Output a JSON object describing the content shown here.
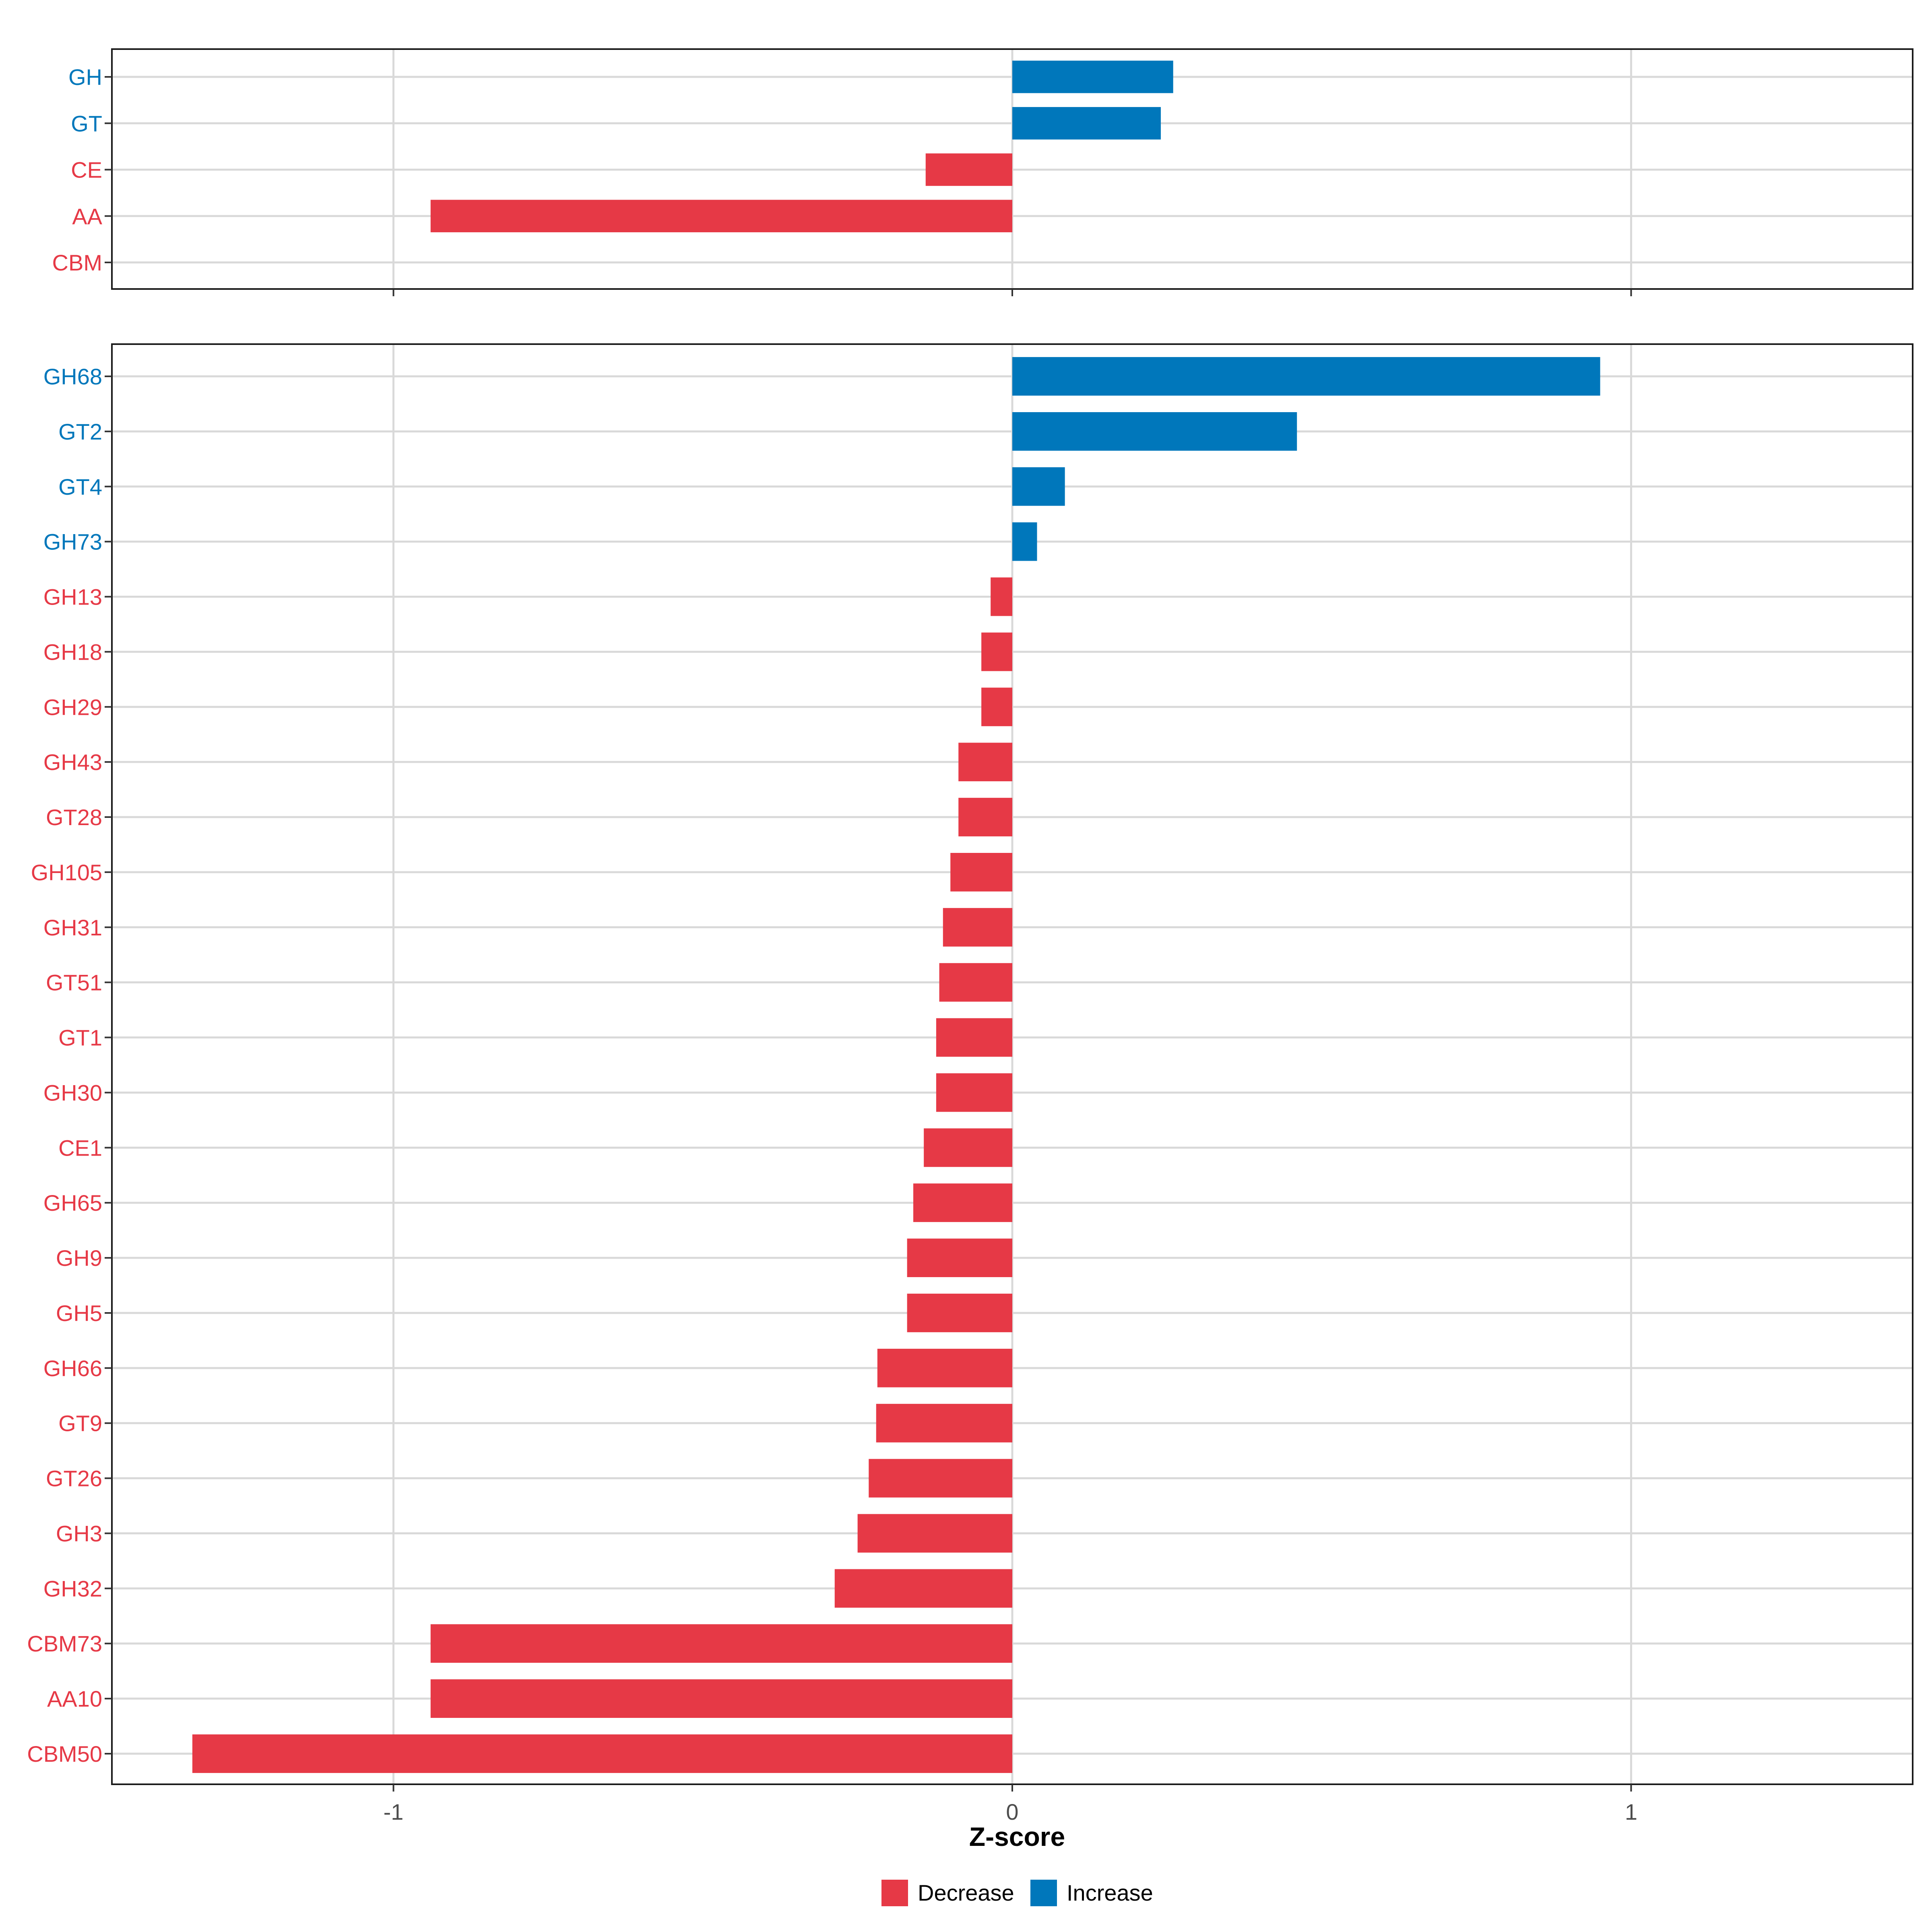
{
  "colors": {
    "decrease": "#e63946",
    "increase": "#0077bb",
    "grid": "#d9d9d9",
    "axis_text": "#4d4d4d"
  },
  "chart_data": [
    {
      "type": "bar",
      "orientation": "horizontal",
      "panel": "top",
      "categories": [
        "GH",
        "GT",
        "CE",
        "AA",
        "CBM"
      ],
      "values": [
        0.26,
        0.24,
        -0.14,
        -0.94,
        0.0
      ],
      "direction": [
        "Increase",
        "Increase",
        "Decrease",
        "Decrease",
        "Decrease"
      ],
      "xlim": [
        -1.455,
        1.455
      ],
      "xticks": [
        -1,
        0,
        1
      ],
      "show_x_tick_labels": false,
      "grid": true
    },
    {
      "type": "bar",
      "orientation": "horizontal",
      "panel": "bottom",
      "categories": [
        "GH68",
        "GT2",
        "GT4",
        "GH73",
        "GH13",
        "GH18",
        "GH29",
        "GH43",
        "GT28",
        "GH105",
        "GH31",
        "GT51",
        "GT1",
        "GH30",
        "CE1",
        "GH65",
        "GH9",
        "GH5",
        "GH66",
        "GT9",
        "GT26",
        "GH3",
        "GH32",
        "CBM73",
        "AA10",
        "CBM50"
      ],
      "values": [
        0.95,
        0.46,
        0.085,
        0.04,
        -0.035,
        -0.05,
        -0.05,
        -0.087,
        -0.087,
        -0.1,
        -0.112,
        -0.118,
        -0.123,
        -0.123,
        -0.143,
        -0.16,
        -0.17,
        -0.17,
        -0.218,
        -0.22,
        -0.232,
        -0.25,
        -0.287,
        -0.94,
        -0.94,
        -1.325
      ],
      "direction": [
        "Increase",
        "Increase",
        "Increase",
        "Increase",
        "Decrease",
        "Decrease",
        "Decrease",
        "Decrease",
        "Decrease",
        "Decrease",
        "Decrease",
        "Decrease",
        "Decrease",
        "Decrease",
        "Decrease",
        "Decrease",
        "Decrease",
        "Decrease",
        "Decrease",
        "Decrease",
        "Decrease",
        "Decrease",
        "Decrease",
        "Decrease",
        "Decrease",
        "Decrease"
      ],
      "xlim": [
        -1.455,
        1.455
      ],
      "xticks": [
        -1,
        0,
        1
      ],
      "xtick_labels": [
        "-1",
        "0",
        "1"
      ],
      "xlabel": "Z-score",
      "grid": true
    }
  ],
  "legend": {
    "position": "bottom",
    "items": [
      {
        "label": "Decrease",
        "color_key": "decrease"
      },
      {
        "label": "Increase",
        "color_key": "increase"
      }
    ]
  }
}
